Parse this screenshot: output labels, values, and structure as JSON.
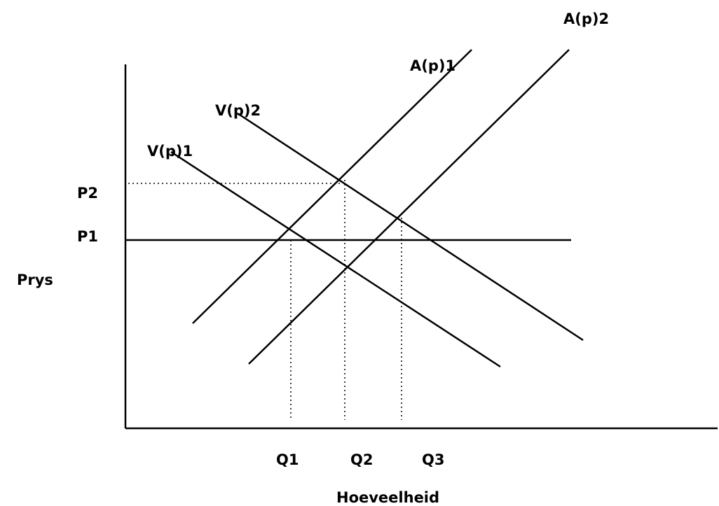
{
  "axes": {
    "y_label": "Prys",
    "x_label": "Hoeveelheid"
  },
  "price_levels": [
    {
      "label": "P2"
    },
    {
      "label": "P1"
    }
  ],
  "quantity_levels": [
    {
      "label": "Q1"
    },
    {
      "label": "Q2"
    },
    {
      "label": "Q3"
    }
  ],
  "curves": [
    {
      "label": "V(p)1"
    },
    {
      "label": "V(p)2"
    },
    {
      "label": "A(p)1"
    },
    {
      "label": "A(p)2"
    }
  ],
  "colors": {
    "line": "#000000",
    "background": "#ffffff"
  }
}
